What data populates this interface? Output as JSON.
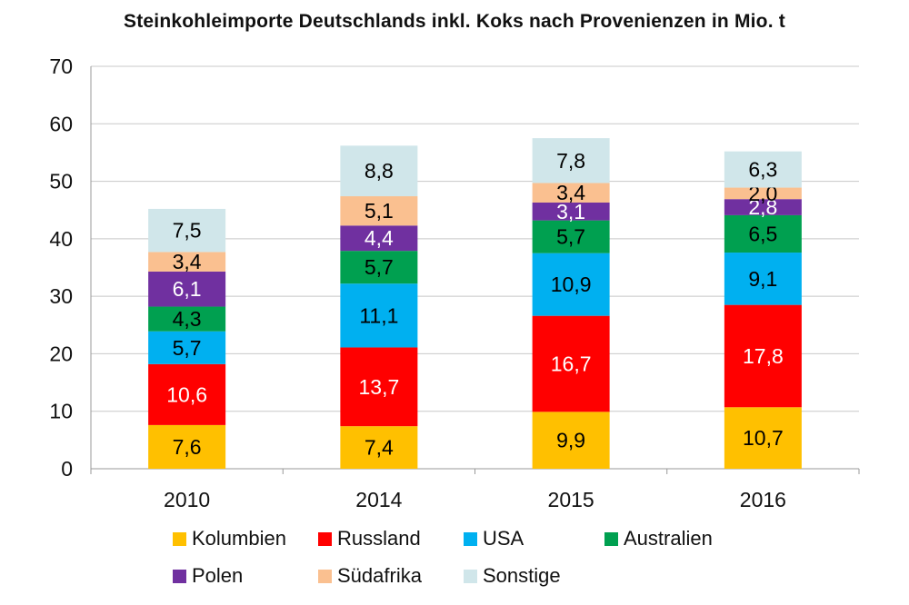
{
  "chart_data": {
    "type": "bar",
    "stacked": true,
    "title": "Steinkohleimporte Deutschlands inkl. Koks nach Provenienzen in Mio. t",
    "categories": [
      "2010",
      "2014",
      "2015",
      "2016"
    ],
    "ylim": [
      0,
      70
    ],
    "yticks": [
      "0",
      "10",
      "20",
      "30",
      "40",
      "50",
      "60",
      "70"
    ],
    "grid": true,
    "legend_position": "bottom",
    "series": [
      {
        "name": "Kolumbien",
        "color": "#FFC000",
        "values": [
          7.6,
          7.4,
          9.9,
          10.7
        ],
        "labels": [
          "7,6",
          "7,4",
          "9,9",
          "10,7"
        ],
        "label_color": "#000000"
      },
      {
        "name": "Russland",
        "color": "#FF0000",
        "values": [
          10.6,
          13.7,
          16.7,
          17.8
        ],
        "labels": [
          "10,6",
          "13,7",
          "16,7",
          "17,8"
        ],
        "label_color": "#FFFFFF"
      },
      {
        "name": "USA",
        "color": "#00B0F0",
        "values": [
          5.7,
          11.1,
          10.9,
          9.1
        ],
        "labels": [
          "5,7",
          "11,1",
          "10,9",
          "9,1"
        ],
        "label_color": "#000000"
      },
      {
        "name": "Australien",
        "color": "#00A050",
        "values": [
          4.3,
          5.7,
          5.7,
          6.5
        ],
        "labels": [
          "4,3",
          "5,7",
          "5,7",
          "6,5"
        ],
        "label_color": "#000000"
      },
      {
        "name": "Polen",
        "color": "#7030A0",
        "values": [
          6.1,
          4.4,
          3.1,
          2.8
        ],
        "labels": [
          "6,1",
          "4,4",
          "3,1",
          "2,8"
        ],
        "label_color": "#FFFFFF"
      },
      {
        "name": "Südafrika",
        "color": "#FAC090",
        "values": [
          3.4,
          5.1,
          3.4,
          2.0
        ],
        "labels": [
          "3,4",
          "5,1",
          "3,4",
          "2,0"
        ],
        "label_color": "#000000"
      },
      {
        "name": "Sonstige",
        "color": "#D0E6EA",
        "values": [
          7.5,
          8.8,
          7.8,
          6.3
        ],
        "labels": [
          "7,5",
          "8,8",
          "7,8",
          "6,3"
        ],
        "label_color": "#000000"
      }
    ]
  }
}
